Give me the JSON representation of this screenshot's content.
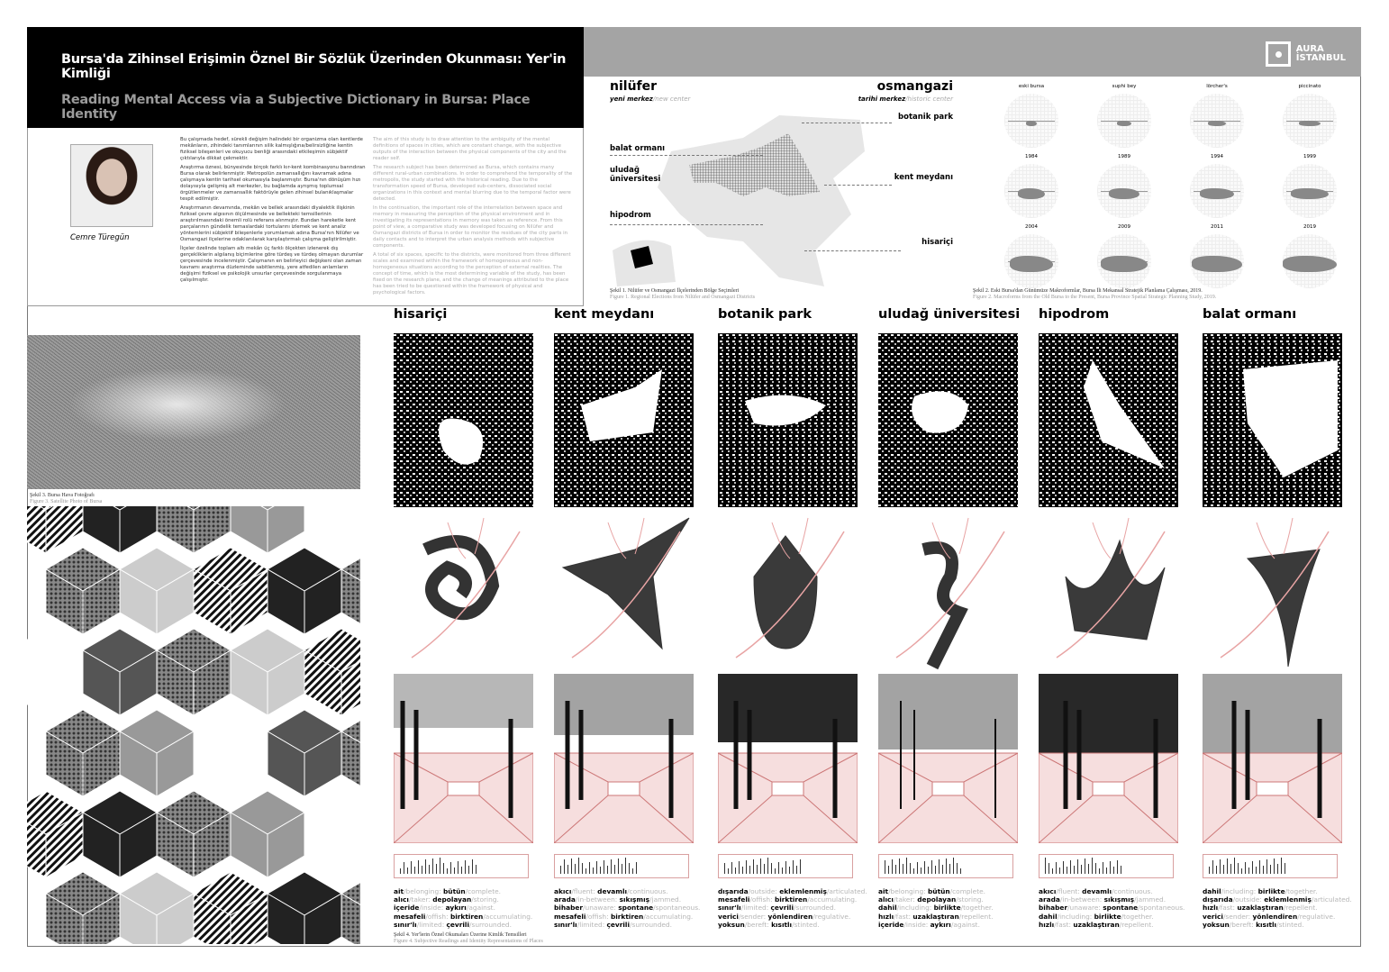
{
  "header": {
    "title_tr": "Bursa'da Zihinsel Erişimin Öznel Bir Sözlük Üzerinden Okunması: Yer'in Kimliği",
    "title_en": "Reading Mental Access via a Subjective Dictionary in Bursa: Place Identity"
  },
  "logo": {
    "line1": "AURA",
    "line2": "İSTANBUL"
  },
  "author": "Cemre Türegün",
  "abstract_tr": [
    "Bu çalışmada hedef, sürekli değişim halindeki bir organizma olan kentlerde mekânların, zihindeki tanımlarının silik kalmışlığına/belirsizliğine kentin fiziksel bileşenleri ve okuyucu benliği arasındaki etkileşimin sübjektif çıktılarıyla dikkat çekmektir.",
    "Araştırma öznesi, bünyesinde birçok farklı kır-kent kombinasyonu barındıran Bursa olarak belirlenmiştir. Metropolün zamansallığını kavramak adına çalışmaya kentin tarihsel okumasıyla başlanmıştır. Bursa'nın dönüşüm hızı dolayısıyla gelişmiş alt merkezler, bu bağlamda ayrışmış toplumsal örgütlenmeler ve zamansallık faktörüyle gelen zihinsel bulanıklaşmalar tespit edilmiştir.",
    "Araştırmanın devamında, mekân ve bellek arasındaki diyalektik ilişkinin fiziksel çevre algısının ölçülmesinde ve bellekteki temsillerinin araştırılmasındaki önemli rolü referans alınmıştır. Bundan hareketle kent parçalarının gündelik temaslardaki tortularını izlemek ve kent analiz yöntemlerini sübjektif bileşenlerle yorumlamak adına Bursa'nın Nilüfer ve Osmangazi ilçelerine odaklanılarak karşılaştırmalı çalışma geliştirilmiştir.",
    "İlçeler özelinde toplam altı mekân üç farklı ölçekten izlenerek dış gerçekliklerin algılanış biçimlerine göre türdeş ve türdeş olmayan durumlar çerçevesinde incelenmiştir. Çalışmanın en belirleyici değişkeni olan zaman kavramı araştırma düzleminde sabitlenmiş, yere atfedilen anlamların değişimi fiziksel ve psikolojik unsurlar çerçevesinde sorgulanmaya çalışılmıştır."
  ],
  "abstract_en": [
    "The aim of this study is to draw attention to the ambiguity of the mental definitions of spaces in cities, which are constant change, with the subjective outputs of the interaction between the physical components of the city and the reader self.",
    "The research subject has been determined as Bursa, which contains many different rural-urban combinations. In order to comprehend the temporality of the metropolis, the study started with the historical reading. Due to the transformation speed of Bursa, developed sub-centers, dissociated social organizations in this context and mental blurring due to the temporal factor were detected.",
    "In the continuation, the important role of the interrelation between space and memory in measuring the perception of the physical environment and in investigating its representations in memory was taken as reference. From this point of view, a comparative study was developed focusing on Nilüfer and Osmangazi districts of Bursa in order to monitor the residues of the city parts in daily contacts and to interpret the urban analysis methods with subjective components.",
    "A total of six spaces, specific to the districts, were monitored from three different scales and examined within the framework of homogeneous and non-homogeneous situations according to the perception of external realities. The concept of time, which is the most determining variable of the study, has been fixed on the research plane, and the change of meanings attributed to the place has been tried to be questioned within the framework of physical and psychological factors."
  ],
  "map": {
    "left_title": "nilüfer",
    "left_sub_tr": "yeni merkez",
    "left_sub_en": "/new center",
    "right_title": "osmangazi",
    "right_sub_tr": "tarihi merkez",
    "right_sub_en": "/historic center",
    "labels": [
      "botanik park",
      "balat ormanı",
      "uludağ üniversitesi",
      "kent meydanı",
      "hipodrom",
      "hisariçi"
    ],
    "caption_tr": "Şekil 1. Nilüfer ve Osmangazi İlçelerinden Bölge Seçimleri",
    "caption_en": "Figure 1. Regional Elections from Nilüfer and Osmangazi Districts"
  },
  "macroforms": {
    "labels": [
      "eski bursa",
      "suphi bey",
      "lörcher's",
      "piccinato",
      "1984",
      "1989",
      "1994",
      "1999",
      "2004",
      "2009",
      "2011",
      "2019"
    ],
    "caption_tr": "Şekil 2. Eski Bursa'dan Günümüze Makroformlar, Bursa İli Mekansal Stratejik Planlama Çalışması, 2019.",
    "caption_en": "Figure 2. Macroforms from the Old Bursa to the Present, Bursa Province Spatial Strategic Planning Study, 2019."
  },
  "satellite": {
    "caption_tr": "Şekil 3. Bursa Hava Fotoğrafı",
    "caption_en": "Figure 3. Satellite Photo of Bursa"
  },
  "figure4": {
    "caption_tr": "Şekil 4. Yer'lerin Öznel Okumaları Üzerine Kimlik Temsilleri",
    "caption_en": "Figure 4. Subjective Readings and Identity Representations of Places"
  },
  "accent": "#e8a4a4",
  "columns": [
    {
      "title": "hisariçi",
      "words": [
        [
          "ait",
          "/belonging: ",
          "bütün",
          "/complete."
        ],
        [
          "alıcı",
          "/taker: ",
          "depolayan",
          "/storing."
        ],
        [
          "içeride",
          "/inside: ",
          "aykırı",
          "/against."
        ],
        [
          "mesafeli",
          "/offish: ",
          "birktiren",
          "/accumulating."
        ],
        [
          "sınır'lı",
          "/limited: ",
          "çevrili",
          "/surrounded."
        ]
      ]
    },
    {
      "title": "kent meydanı",
      "words": [
        [
          "akıcı",
          "/fluent: ",
          "devamlı",
          "/continuous."
        ],
        [
          "arada",
          "/in-between: ",
          "sıkışmış",
          "/jammed."
        ],
        [
          "bihaber",
          "/unaware: ",
          "spontane",
          "/spontaneous."
        ],
        [
          "mesafeli",
          "/offish: ",
          "birktiren",
          "/accumulating."
        ],
        [
          "sınır'lı",
          "/limited: ",
          "çevrili",
          "/surrounded."
        ]
      ]
    },
    {
      "title": "botanik park",
      "words": [
        [
          "dışarıda",
          "/outside: ",
          "eklemlenmiş",
          "/articulated."
        ],
        [
          "mesafeli",
          "/offish: ",
          "birktiren",
          "/accumulating."
        ],
        [
          "sınır'lı",
          "/limited: ",
          "çevrili",
          "/surrounded."
        ],
        [
          "verici",
          "/sender: ",
          "yönlendiren",
          "/regulative."
        ],
        [
          "yoksun",
          "/bereft: ",
          "kısıtlı",
          "/stinted."
        ]
      ]
    },
    {
      "title": "uludağ üniversitesi",
      "words": [
        [
          "ait",
          "/belonging: ",
          "bütün",
          "/complete."
        ],
        [
          "alıcı",
          "/taker: ",
          "depolayan",
          "/storing."
        ],
        [
          "dahil",
          "/including: ",
          "birlikte",
          "/together."
        ],
        [
          "hızlı",
          "/fast: ",
          "uzaklaştıran",
          "/repellent."
        ],
        [
          "içeride",
          "/inside: ",
          "aykırı",
          "/against."
        ]
      ]
    },
    {
      "title": "hipodrom",
      "words": [
        [
          "akıcı",
          "/fluent: ",
          "devamlı",
          "/continuous."
        ],
        [
          "arada",
          "/in-between: ",
          "sıkışmış",
          "/jammed."
        ],
        [
          "bihaber",
          "/unaware: ",
          "spontane",
          "/spontaneous."
        ],
        [
          "dahil",
          "/including: ",
          "birlikte",
          "/together."
        ],
        [
          "hızlı",
          "/fast: ",
          "uzaklaştıran",
          "/repellent."
        ]
      ]
    },
    {
      "title": "balat ormanı",
      "words": [
        [
          "dahil",
          "/including: ",
          "birlikte",
          "/together."
        ],
        [
          "dışarıda",
          "/outside: ",
          "eklemlenmiş",
          "/articulated."
        ],
        [
          "hızlı",
          "/fast: ",
          "uzaklaştıran",
          "/repellent."
        ],
        [
          "verici",
          "/sender: ",
          "yönlendiren",
          "/regulative."
        ],
        [
          "yoksun",
          "/bereft: ",
          "kısıtlı",
          "/stinted."
        ]
      ]
    }
  ]
}
